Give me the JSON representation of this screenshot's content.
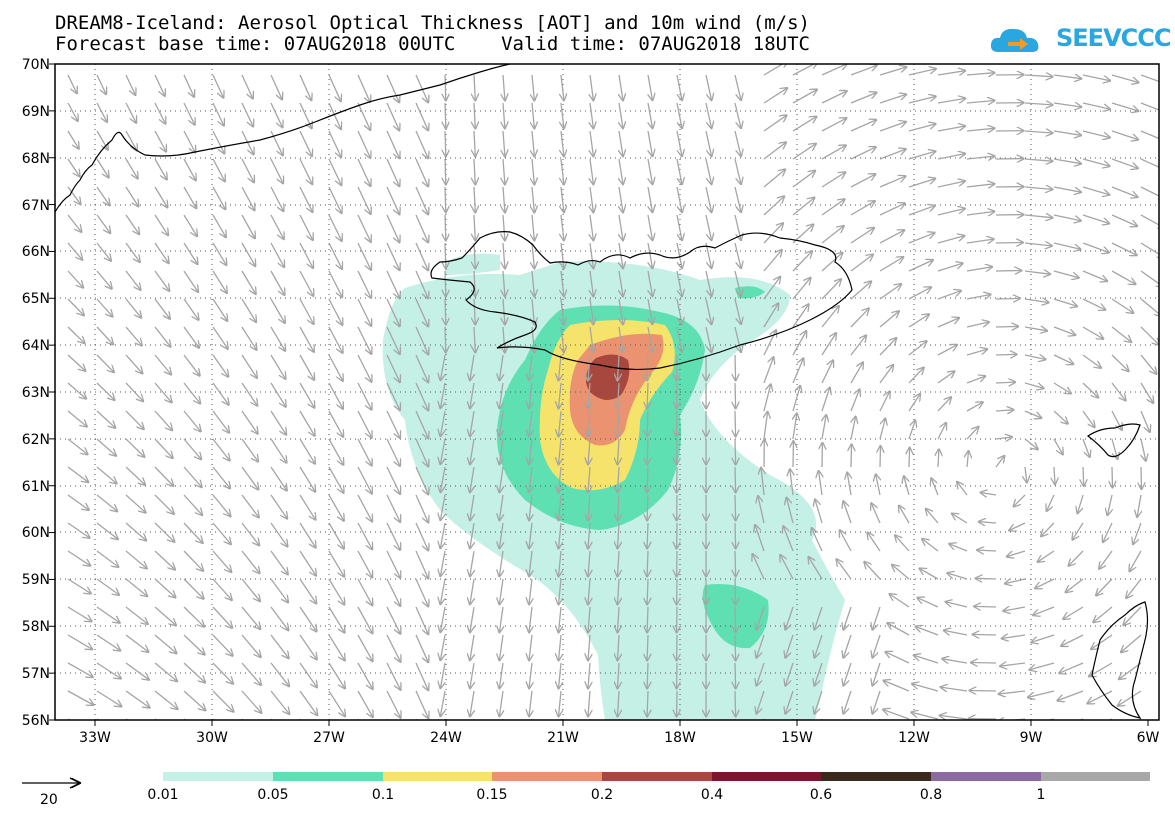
{
  "header": {
    "title_line1": "DREAM8-Iceland: Aerosol Optical Thickness [AOT] and 10m wind (m/s)",
    "title_line2": "Forecast base time: 07AUG2018 00UTC    Valid time: 07AUG2018 18UTC",
    "logo_text": "SEEVCCC"
  },
  "map": {
    "lat_labels": [
      "70N",
      "69N",
      "68N",
      "67N",
      "66N",
      "65N",
      "64N",
      "63N",
      "62N",
      "61N",
      "60N",
      "59N",
      "58N",
      "57N",
      "56N"
    ],
    "lon_labels": [
      "33W",
      "30W",
      "27W",
      "24W",
      "21W",
      "18W",
      "15W",
      "12W",
      "9W",
      "6W"
    ],
    "lat_range": [
      56,
      70
    ],
    "lon_range": [
      -34,
      -6
    ],
    "grid": "dotted"
  },
  "legend": {
    "wind_reference": "20",
    "levels": [
      "0.01",
      "0.05",
      "0.1",
      "0.15",
      "0.2",
      "0.4",
      "0.6",
      "0.8",
      "1"
    ],
    "colors": [
      "#c4f0e6",
      "#5ee0b3",
      "#f5e36c",
      "#eb9370",
      "#a8473d",
      "#7b1530",
      "#3b2a1c",
      "#8a6aa0",
      "#a8a8a8"
    ]
  },
  "colors": {
    "wind_arrow": "#a5a5a5",
    "coastline": "#000000",
    "grid": "#555555"
  }
}
